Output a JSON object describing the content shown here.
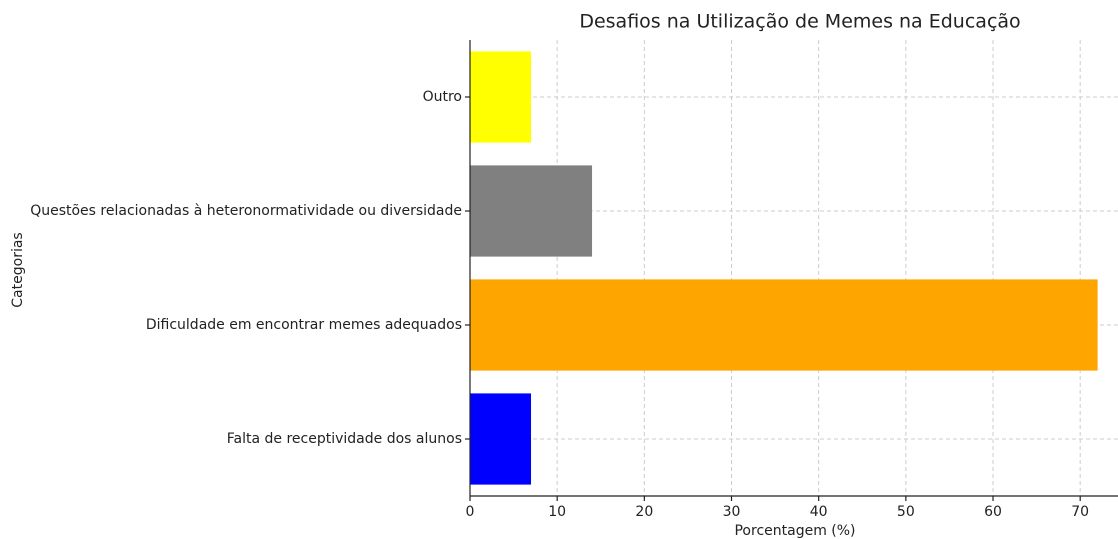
{
  "chart_data": {
    "type": "barh",
    "title": "Desafios na Utilização de Memes na Educação",
    "xlabel": "Porcentagem (%)",
    "ylabel": "Categorias",
    "categories": [
      "Falta de receptividade dos alunos",
      "Dificuldade em encontrar memes adequados",
      "Questões relacionadas à heteronormatividade ou diversidade",
      "Outro"
    ],
    "values": [
      7,
      72,
      14,
      7
    ],
    "colors": [
      "#0000ff",
      "#ffa500",
      "#808080",
      "#ffff00"
    ],
    "xlim": [
      0,
      75.6
    ],
    "xticks": [
      0,
      10,
      20,
      30,
      40,
      50,
      60,
      70
    ],
    "grid": true
  }
}
